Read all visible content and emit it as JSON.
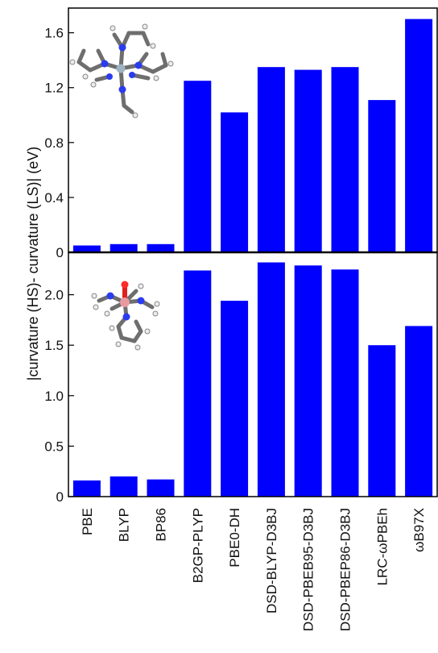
{
  "colors": {
    "bar": "#0000ff",
    "axis": "#000000",
    "text": "#111111"
  },
  "figure": {
    "ylabel": "|curvature (HS)- curvature (LS)| (eV)"
  },
  "chart_data": [
    {
      "type": "bar",
      "panel": "top",
      "categories": [
        "PBE",
        "BLYP",
        "BP86",
        "B2GP-PLYP",
        "PBE0-DH",
        "DSD-BLYP-D3BJ",
        "DSD-PBEB95-D3BJ",
        "DSD-PBEP86-D3BJ",
        "LRC-ωPBEh",
        "ωB97X"
      ],
      "values": [
        0.05,
        0.06,
        0.06,
        1.25,
        1.02,
        1.35,
        1.33,
        1.35,
        1.11,
        1.7
      ],
      "yticks": [
        0,
        0.4,
        0.8,
        1.2,
        1.6
      ],
      "ytick_labels": [
        "0",
        "0.4",
        "0.8",
        "1.2",
        "1.6"
      ],
      "ylim": [
        0,
        1.78
      ],
      "inset": "molecule-structure-1"
    },
    {
      "type": "bar",
      "panel": "bottom",
      "categories": [
        "PBE",
        "BLYP",
        "BP86",
        "B2GP-PLYP",
        "PBE0-DH",
        "DSD-BLYP-D3BJ",
        "DSD-PBEB95-D3BJ",
        "DSD-PBEP86-D3BJ",
        "LRC-ωPBEh",
        "ωB97X"
      ],
      "values": [
        0.16,
        0.2,
        0.17,
        2.24,
        1.94,
        2.32,
        2.29,
        2.25,
        1.5,
        1.69
      ],
      "yticks": [
        0,
        0.5,
        1.0,
        1.5,
        2.0
      ],
      "ytick_labels": [
        "0",
        "0.5",
        "1.0",
        "1.5",
        "2.0"
      ],
      "ylim": [
        0,
        2.42
      ],
      "inset": "molecule-structure-2"
    }
  ]
}
